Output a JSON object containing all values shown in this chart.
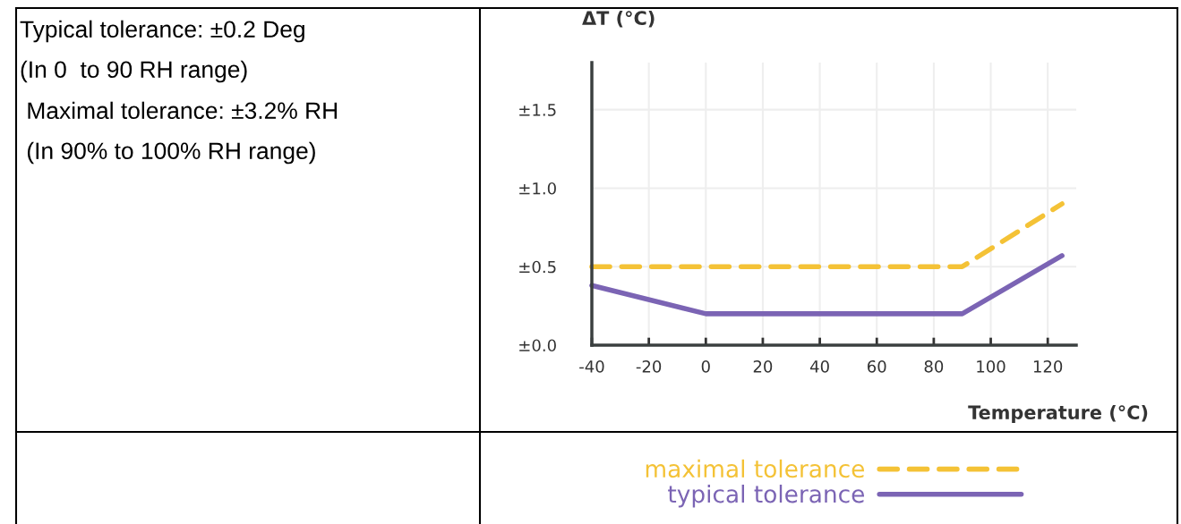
{
  "chart_data": {
    "type": "line",
    "ylabel": "ΔT (°C)",
    "xlabel": "Temperature (°C)",
    "annotations": [
      "Typical tolerance: ±0.2 Deg",
      "(In 0  to 90 RH range)",
      " Maximal tolerance: ±3.2% RH",
      " (In 90% to 100% RH range)"
    ],
    "series": [
      {
        "name": "maximal tolerance",
        "color": "#f4c236",
        "line_style": "dashed",
        "x": [
          -40,
          90,
          125
        ],
        "values": [
          0.5,
          0.5,
          0.9
        ]
      },
      {
        "name": "typical tolerance",
        "color": "#7b64b4",
        "line_style": "solid",
        "x": [
          -40,
          0,
          90,
          125
        ],
        "values": [
          0.38,
          0.2,
          0.2,
          0.57
        ]
      }
    ],
    "xlim": [
      -40,
      130
    ],
    "ylim": [
      0,
      1.8
    ],
    "xticks": [
      -40,
      -20,
      0,
      20,
      40,
      60,
      80,
      100,
      120
    ],
    "yticks": [
      {
        "value": 0,
        "label": "±0.0"
      },
      {
        "value": 0.5,
        "label": "±0.5"
      },
      {
        "value": 1.0,
        "label": "±1.0"
      },
      {
        "value": 1.5,
        "label": "±1.5"
      }
    ],
    "grid": true,
    "legend": "bottom"
  }
}
